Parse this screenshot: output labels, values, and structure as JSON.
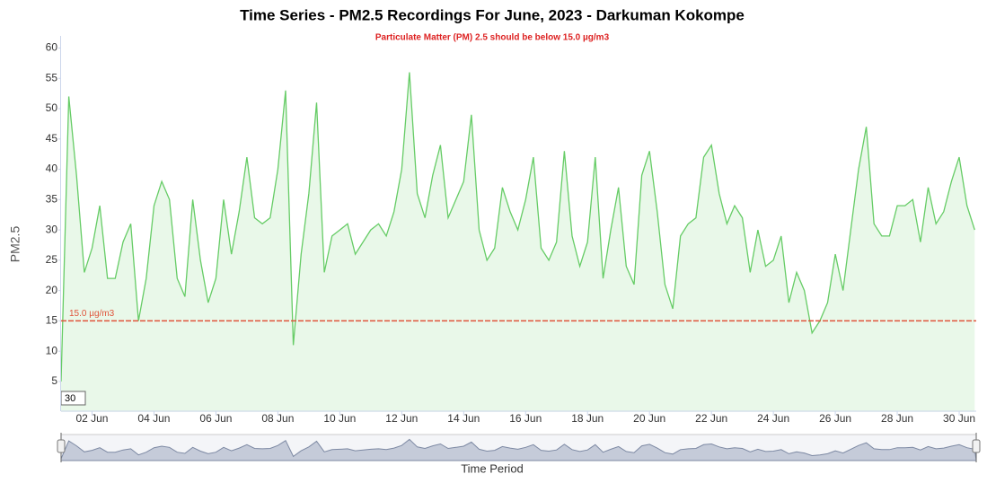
{
  "chart_data": {
    "type": "area",
    "title": "Time Series - PM2.5 Recordings For June, 2023 - Darkuman Kokompe",
    "subtitle": "Particulate Matter (PM) 2.5 should be below 15.0 µg/m3",
    "y_label": "PM2.5",
    "x_label": "Time Period",
    "zoom_box": "30",
    "threshold": {
      "value": 15,
      "label": "15.0 µg/m3",
      "color": "#e0533a"
    },
    "x": [
      1,
      1.25,
      1.5,
      1.75,
      2,
      2.25,
      2.5,
      2.75,
      3,
      3.25,
      3.5,
      3.75,
      4,
      4.25,
      4.5,
      4.75,
      5,
      5.25,
      5.5,
      5.75,
      6,
      6.25,
      6.5,
      6.75,
      7,
      7.25,
      7.5,
      7.75,
      8,
      8.25,
      8.5,
      8.75,
      9,
      9.25,
      9.5,
      9.75,
      10,
      10.25,
      10.5,
      10.75,
      11,
      11.25,
      11.5,
      11.75,
      12,
      12.25,
      12.5,
      12.75,
      13,
      13.25,
      13.5,
      13.75,
      14,
      14.25,
      14.5,
      14.75,
      15,
      15.25,
      15.5,
      15.75,
      16,
      16.25,
      16.5,
      16.75,
      17,
      17.25,
      17.5,
      17.75,
      18,
      18.25,
      18.5,
      18.75,
      19,
      19.25,
      19.5,
      19.75,
      20,
      20.25,
      20.5,
      20.75,
      21,
      21.25,
      21.5,
      21.75,
      22,
      22.25,
      22.5,
      22.75,
      23,
      23.25,
      23.5,
      23.75,
      24,
      24.25,
      24.5,
      24.75,
      25,
      25.25,
      25.5,
      25.75,
      26,
      26.25,
      26.5,
      26.75,
      27,
      27.25,
      27.5,
      27.75,
      28,
      28.25,
      28.5,
      28.75,
      29,
      29.25,
      29.5,
      29.75,
      30,
      30.25,
      30.5
    ],
    "series": [
      {
        "name": "PM2.5",
        "color": "#66cc66",
        "fill": "#e9f8e9",
        "values": [
          5,
          52,
          39,
          23,
          27,
          34,
          22,
          22,
          28,
          31,
          15,
          22,
          34,
          38,
          35,
          22,
          19,
          35,
          25,
          18,
          22,
          35,
          26,
          33,
          42,
          32,
          31,
          32,
          40,
          53,
          11,
          26,
          36,
          51,
          23,
          29,
          30,
          31,
          26,
          28,
          30,
          31,
          29,
          33,
          40,
          56,
          36,
          32,
          39,
          44,
          32,
          35,
          38,
          49,
          30,
          25,
          27,
          37,
          33,
          30,
          35,
          42,
          27,
          25,
          28,
          43,
          29,
          24,
          28,
          42,
          22,
          30,
          37,
          24,
          21,
          39,
          43,
          33,
          21,
          17,
          29,
          31,
          32,
          42,
          44,
          36,
          31,
          34,
          32,
          23,
          30,
          24,
          25,
          29,
          18,
          23,
          20,
          13,
          15,
          18,
          26,
          20,
          30,
          40,
          47,
          31,
          29,
          29,
          34,
          34,
          35,
          28,
          37,
          31,
          33,
          38,
          42,
          34,
          30
        ]
      }
    ],
    "xlim": [
      1,
      30.55
    ],
    "ylim": [
      0,
      62
    ],
    "yticks": [
      5,
      10,
      15,
      20,
      25,
      30,
      35,
      40,
      45,
      50,
      55,
      60
    ],
    "xticks": [
      {
        "value": 2,
        "label": "02 Jun"
      },
      {
        "value": 4,
        "label": "04 Jun"
      },
      {
        "value": 6,
        "label": "06 Jun"
      },
      {
        "value": 8,
        "label": "08 Jun"
      },
      {
        "value": 10,
        "label": "10 Jun"
      },
      {
        "value": 12,
        "label": "12 Jun"
      },
      {
        "value": 14,
        "label": "14 Jun"
      },
      {
        "value": 16,
        "label": "16 Jun"
      },
      {
        "value": 18,
        "label": "18 Jun"
      },
      {
        "value": 20,
        "label": "20 Jun"
      },
      {
        "value": 22,
        "label": "22 Jun"
      },
      {
        "value": 24,
        "label": "24 Jun"
      },
      {
        "value": 26,
        "label": "26 Jun"
      },
      {
        "value": 28,
        "label": "28 Jun"
      },
      {
        "value": 30,
        "label": "30 Jun"
      }
    ]
  }
}
